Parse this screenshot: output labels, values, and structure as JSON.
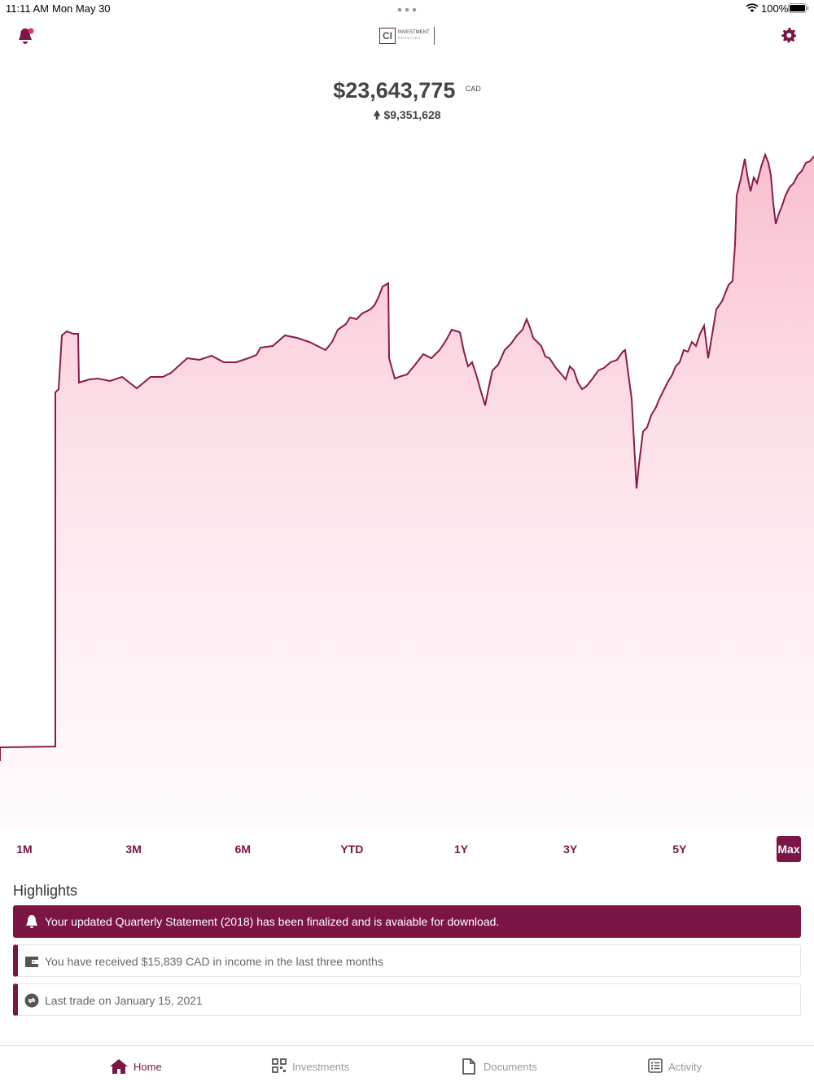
{
  "status_bar": {
    "time": "11:11 AM",
    "date": "Mon May 30",
    "battery": "100%"
  },
  "header": {
    "logo_mark": "CI",
    "logo_text": "INVESTMENT",
    "logo_subtext": "SERVICES"
  },
  "balance": {
    "amount": "$23,643,775",
    "currency": "CAD",
    "change": "$9,351,628"
  },
  "ranges": [
    "1M",
    "3M",
    "6M",
    "YTD",
    "1Y",
    "3Y",
    "5Y",
    "Max"
  ],
  "highlights": {
    "title": "Highlights",
    "items": [
      "Your updated Quarterly  Statement (2018) has been finalized and is avaiable for download.",
      "You have received $15,839 CAD in income in the last three months",
      "Last trade on January 15, 2021"
    ]
  },
  "tabs": [
    "Home",
    "Investments",
    "Documents",
    "Activity"
  ]
}
